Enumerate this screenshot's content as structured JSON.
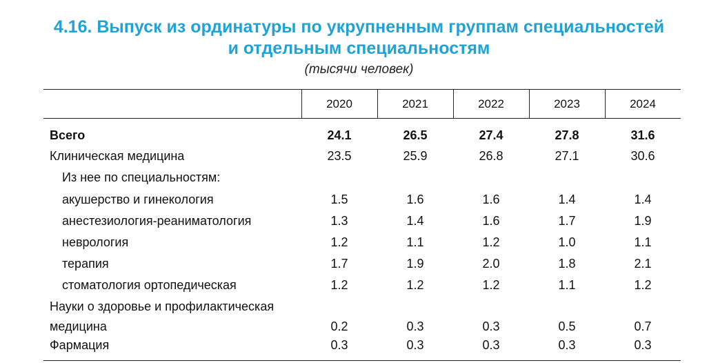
{
  "title": "4.16. Выпуск из ординатуры по укрупненным группам специальностей\nи отдельным специальностям",
  "title_line1": "4.16. Выпуск из ординатуры по укрупненным группам специальностей",
  "title_line2": "и отдельным специальностям",
  "units": "(тысячи человек)",
  "years": [
    "2020",
    "2021",
    "2022",
    "2023",
    "2024"
  ],
  "rows": [
    {
      "label": "Всего",
      "values": [
        "24.1",
        "26.5",
        "27.4",
        "27.8",
        "31.6"
      ]
    },
    {
      "label": "Клиническая медицина",
      "values": [
        "23.5",
        "25.9",
        "26.8",
        "27.1",
        "30.6"
      ]
    },
    {
      "label": "Из нее по специальностям:",
      "values": [
        "",
        "",
        "",
        "",
        ""
      ]
    },
    {
      "label": "акушерство и гинекология",
      "values": [
        "1.5",
        "1.6",
        "1.6",
        "1.4",
        "1.4"
      ]
    },
    {
      "label": "анестезиология-реаниматология",
      "values": [
        "1.3",
        "1.4",
        "1.6",
        "1.7",
        "1.9"
      ]
    },
    {
      "label": "неврология",
      "values": [
        "1.2",
        "1.1",
        "1.2",
        "1.0",
        "1.1"
      ]
    },
    {
      "label": "терапия",
      "values": [
        "1.7",
        "1.9",
        "2.0",
        "1.8",
        "2.1"
      ]
    },
    {
      "label": "стоматология ортопедическая",
      "values": [
        "1.2",
        "1.2",
        "1.2",
        "1.1",
        "1.2"
      ]
    },
    {
      "label": "Науки о здоровье и профилактическая\nмедицина",
      "values": [
        "0.2",
        "0.3",
        "0.3",
        "0.5",
        "0.7"
      ]
    },
    {
      "label": "Фармация",
      "values": [
        "0.3",
        "0.3",
        "0.3",
        "0.3",
        "0.3"
      ]
    }
  ]
}
